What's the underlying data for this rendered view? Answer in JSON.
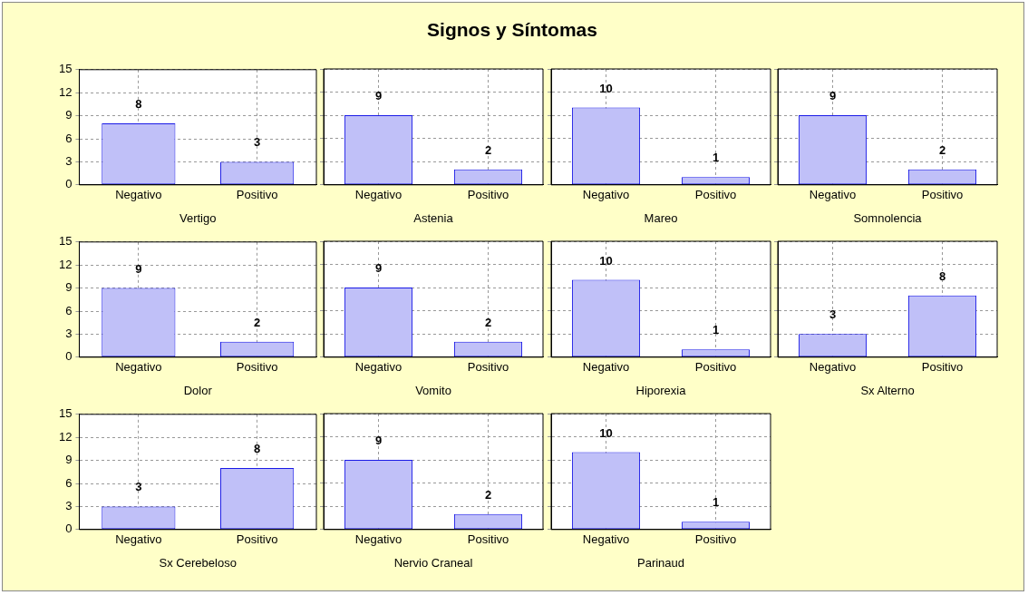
{
  "chart_data": [
    {
      "type": "other",
      "title": "Signos y Síntomas"
    },
    {
      "type": "bar",
      "xlabel": "Vertigo",
      "categories": [
        "Negativo",
        "Positivo"
      ],
      "values": [
        8,
        3
      ],
      "color": "#c0c0f8",
      "ylim": [
        0,
        15
      ],
      "yticks": [
        0,
        3,
        6,
        9,
        12,
        15
      ],
      "grid": true,
      "data_labels": true
    },
    {
      "type": "bar",
      "xlabel": "Astenia",
      "categories": [
        "Negativo",
        "Positivo"
      ],
      "values": [
        9,
        2
      ],
      "color": "#c0c0f8",
      "ylim": [
        0,
        15
      ],
      "yticks": [
        0,
        3,
        6,
        9,
        12,
        15
      ],
      "grid": true,
      "data_labels": true,
      "tick_labels": "x"
    },
    {
      "type": "bar",
      "xlabel": "Mareo",
      "categories": [
        "Negativo",
        "Positivo"
      ],
      "values": [
        10,
        1
      ],
      "color": "#c0c0f8",
      "ylim": [
        0,
        15
      ],
      "yticks": [
        0,
        3,
        6,
        9,
        12,
        15
      ],
      "grid": true,
      "data_labels": true,
      "tick_labels": "x"
    },
    {
      "type": "bar",
      "xlabel": "Somnolencia",
      "categories": [
        "Negativo",
        "Positivo"
      ],
      "values": [
        9,
        2
      ],
      "color": "#c0c0f8",
      "ylim": [
        0,
        15
      ],
      "yticks": [
        0,
        3,
        6,
        9,
        12,
        15
      ],
      "grid": true,
      "data_labels": true,
      "tick_labels": "x"
    },
    {
      "type": "bar",
      "xlabel": "Dolor",
      "categories": [
        "Negativo",
        "Positivo"
      ],
      "values": [
        9,
        2
      ],
      "color": "#c0c0f8",
      "ylim": [
        0,
        15
      ],
      "yticks": [
        0,
        3,
        6,
        9,
        12,
        15
      ],
      "grid": true,
      "data_labels": true
    },
    {
      "type": "bar",
      "xlabel": "Vomito",
      "categories": [
        "Negativo",
        "Positivo"
      ],
      "values": [
        9,
        2
      ],
      "color": "#c0c0f8",
      "ylim": [
        0,
        15
      ],
      "yticks": [
        0,
        3,
        6,
        9,
        12,
        15
      ],
      "grid": true,
      "data_labels": true,
      "tick_labels": "x"
    },
    {
      "type": "bar",
      "xlabel": "Hiporexia",
      "categories": [
        "Negativo",
        "Positivo"
      ],
      "values": [
        10,
        1
      ],
      "color": "#c0c0f8",
      "ylim": [
        0,
        15
      ],
      "yticks": [
        0,
        3,
        6,
        9,
        12,
        15
      ],
      "grid": true,
      "data_labels": true,
      "tick_labels": "x"
    },
    {
      "type": "bar",
      "xlabel": "Sx Alterno",
      "categories": [
        "Negativo",
        "Positivo"
      ],
      "values": [
        3,
        8
      ],
      "color": "#c0c0f8",
      "ylim": [
        0,
        15
      ],
      "yticks": [
        0,
        3,
        6,
        9,
        12,
        15
      ],
      "grid": true,
      "data_labels": true,
      "tick_labels": "x"
    },
    {
      "type": "bar",
      "xlabel": "Sx Cerebeloso",
      "categories": [
        "Negativo",
        "Positivo"
      ],
      "values": [
        3,
        8
      ],
      "color": "#c0c0f8",
      "ylim": [
        0,
        15
      ],
      "yticks": [
        0,
        3,
        6,
        9,
        12,
        15
      ],
      "grid": true,
      "data_labels": true
    },
    {
      "type": "bar",
      "xlabel": "Nervio Craneal",
      "categories": [
        "Negativo",
        "Positivo"
      ],
      "values": [
        9,
        2
      ],
      "color": "#c0c0f8",
      "ylim": [
        0,
        15
      ],
      "yticks": [
        0,
        3,
        6,
        9,
        12,
        15
      ],
      "grid": true,
      "data_labels": true,
      "tick_labels": "x"
    },
    {
      "type": "bar",
      "xlabel": "Parinaud",
      "categories": [
        "Negativo",
        "Positivo"
      ],
      "values": [
        10,
        1
      ],
      "color": "#c0c0f8",
      "ylim": [
        0,
        15
      ],
      "yticks": [
        0,
        3,
        6,
        9,
        12,
        15
      ],
      "grid": true,
      "data_labels": true,
      "tick_labels": "x"
    }
  ]
}
